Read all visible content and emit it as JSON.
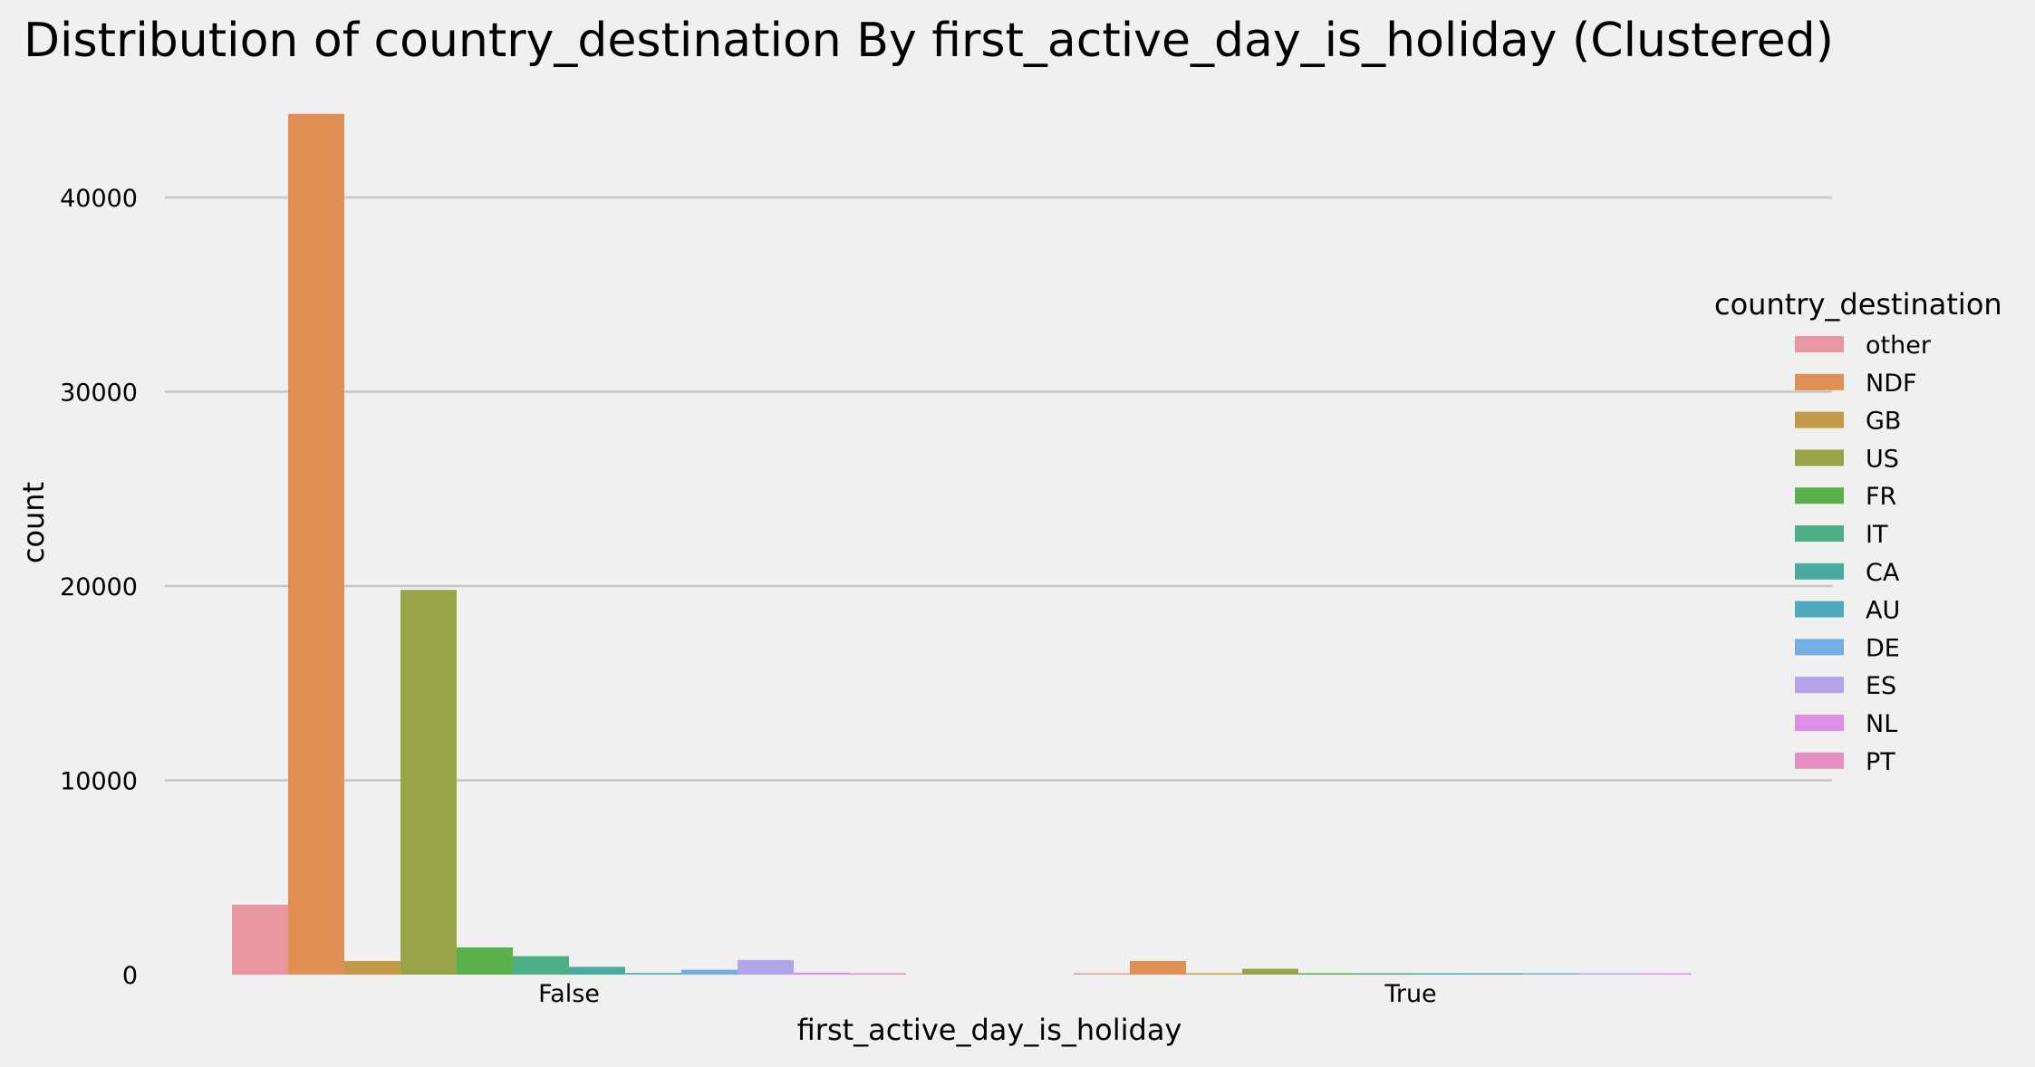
{
  "chart_data": {
    "type": "bar",
    "title": "Distribution of country_destination By first_active_day_is_holiday (Clustered)",
    "xlabel": "first_active_day_is_holiday",
    "ylabel": "count",
    "categories": [
      "False",
      "True"
    ],
    "ylim": [
      0,
      46000
    ],
    "yticks": [
      0,
      10000,
      20000,
      30000,
      40000
    ],
    "grid": "horizontal",
    "legend": {
      "title": "country_destination",
      "placement": "center-right"
    },
    "series": [
      {
        "name": "other",
        "color": "#e8969f",
        "values": [
          3600,
          40
        ]
      },
      {
        "name": "NDF",
        "color": "#e08f55",
        "values": [
          44300,
          700
        ]
      },
      {
        "name": "GB",
        "color": "#c39a48",
        "values": [
          700,
          10
        ]
      },
      {
        "name": "US",
        "color": "#98a448",
        "values": [
          19800,
          300
        ]
      },
      {
        "name": "FR",
        "color": "#5ab04a",
        "values": [
          1400,
          20
        ]
      },
      {
        "name": "IT",
        "color": "#4eae85",
        "values": [
          950,
          15
        ]
      },
      {
        "name": "CA",
        "color": "#4cab9f",
        "values": [
          400,
          8
        ]
      },
      {
        "name": "AU",
        "color": "#50a9bd",
        "values": [
          80,
          2
        ]
      },
      {
        "name": "DE",
        "color": "#72afe3",
        "values": [
          250,
          5
        ]
      },
      {
        "name": "ES",
        "color": "#b2a4e8",
        "values": [
          750,
          10
        ]
      },
      {
        "name": "NL",
        "color": "#dd8ee6",
        "values": [
          100,
          2
        ]
      },
      {
        "name": "PT",
        "color": "#e78fc2",
        "values": [
          15,
          0
        ]
      }
    ]
  }
}
